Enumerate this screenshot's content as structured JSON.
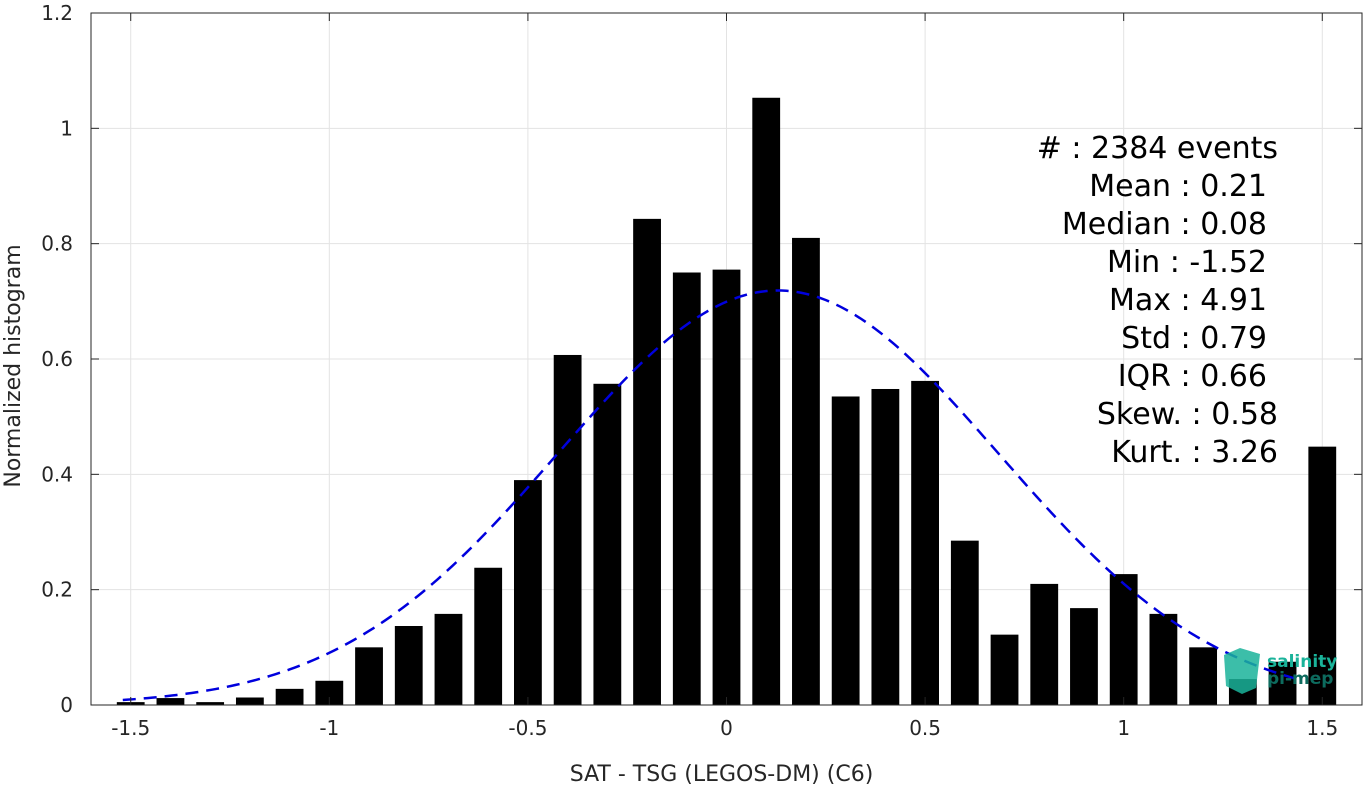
{
  "chart_data": {
    "type": "bar",
    "xlabel": "SAT - TSG (LEGOS-DM) (C6)",
    "ylabel": "Normalized histogram",
    "xlim": [
      -1.6,
      1.6
    ],
    "ylim": [
      0,
      1.2
    ],
    "xticks": [
      -1.5,
      -1,
      -0.5,
      0,
      0.5,
      1,
      1.5
    ],
    "xtick_labels": [
      "-1.5",
      "-1",
      "-0.5",
      "0",
      "0.5",
      "1",
      "1.5"
    ],
    "yticks": [
      0,
      0.2,
      0.4,
      0.6,
      0.8,
      1,
      1.2
    ],
    "ytick_labels": [
      "0",
      "0.2",
      "0.4",
      "0.6",
      "0.8",
      "1",
      "1.2"
    ],
    "grid": true,
    "bars": {
      "color": "#000000",
      "width": 0.07,
      "x": [
        -1.5,
        -1.4,
        -1.3,
        -1.2,
        -1.1,
        -1.0,
        -0.9,
        -0.8,
        -0.7,
        -0.6,
        -0.5,
        -0.4,
        -0.3,
        -0.2,
        -0.1,
        0.0,
        0.1,
        0.2,
        0.3,
        0.4,
        0.5,
        0.6,
        0.7,
        0.8,
        0.9,
        1.0,
        1.1,
        1.2,
        1.3,
        1.4,
        1.5
      ],
      "values": [
        0.005,
        0.012,
        0.005,
        0.013,
        0.028,
        0.042,
        0.1,
        0.137,
        0.158,
        0.238,
        0.39,
        0.607,
        0.557,
        0.843,
        0.75,
        0.755,
        1.053,
        0.81,
        0.535,
        0.548,
        0.562,
        0.285,
        0.122,
        0.21,
        0.168,
        0.227,
        0.158,
        0.1,
        0.045,
        0.075,
        0.448
      ]
    },
    "fit_curve": {
      "style": "dashed",
      "color": "#0000dd",
      "distribution": "normal",
      "mean": 0.13,
      "std": 0.555,
      "xrange": [
        -1.52,
        1.45
      ]
    },
    "stats_lines": [
      "#  : 2384 events",
      "Mean : 0.21",
      "Median : 0.08",
      "Min : -1.52",
      "Max : 4.91",
      "Std : 0.79",
      "IQR : 0.66",
      "Skew. : 0.58",
      "Kurt. : 3.26"
    ],
    "logo": {
      "line1": "salinity",
      "line2": "pi-mep",
      "color1": "#1ab39a",
      "color2": "#0d6b5e"
    }
  }
}
